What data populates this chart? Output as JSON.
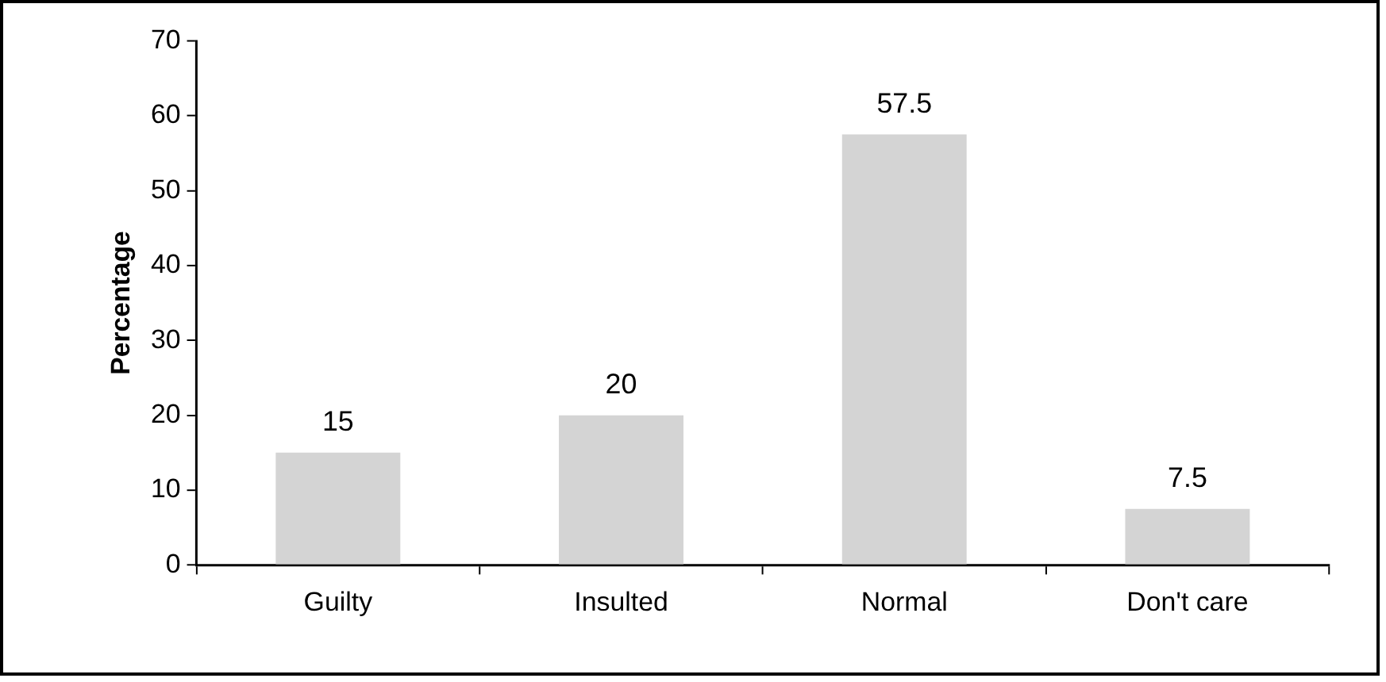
{
  "chart_data": {
    "type": "bar",
    "ylabel": "Percentage",
    "categories": [
      "Guilty",
      "Insulted",
      "Normal",
      "Don't care"
    ],
    "values": [
      15,
      20,
      57.5,
      7.5
    ],
    "color": "#d4d4d4",
    "ylim": [
      0,
      70
    ],
    "yticks": [
      0,
      10,
      20,
      30,
      40,
      50,
      60,
      70
    ],
    "grid": false,
    "data_labels": true
  }
}
